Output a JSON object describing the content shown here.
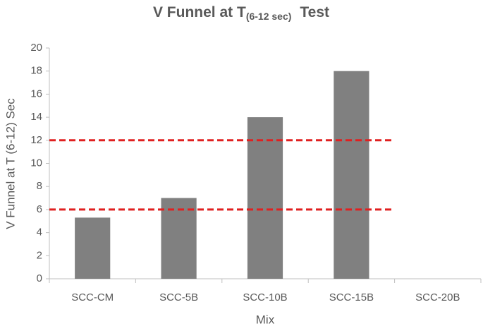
{
  "chart_data": {
    "type": "bar",
    "title": "V Funnel at T",
    "title_subscript": "(6-12 sec)",
    "title_end": "Test",
    "x_label": "Mix",
    "y_label": "V Funnel at T (6-12) Sec",
    "categories": [
      "SCC-CM",
      "SCC-5B",
      "SCC-10B",
      "SCC-15B",
      "SCC-20B"
    ],
    "values": [
      5.3,
      7,
      14,
      18,
      null
    ],
    "color": "#808080",
    "ylim": [
      0,
      20
    ],
    "yticks": [
      0,
      2,
      4,
      6,
      8,
      10,
      12,
      14,
      16,
      18,
      20
    ],
    "grid": false,
    "reference_lines": [
      6,
      12
    ],
    "reference_color": "#e02020"
  }
}
